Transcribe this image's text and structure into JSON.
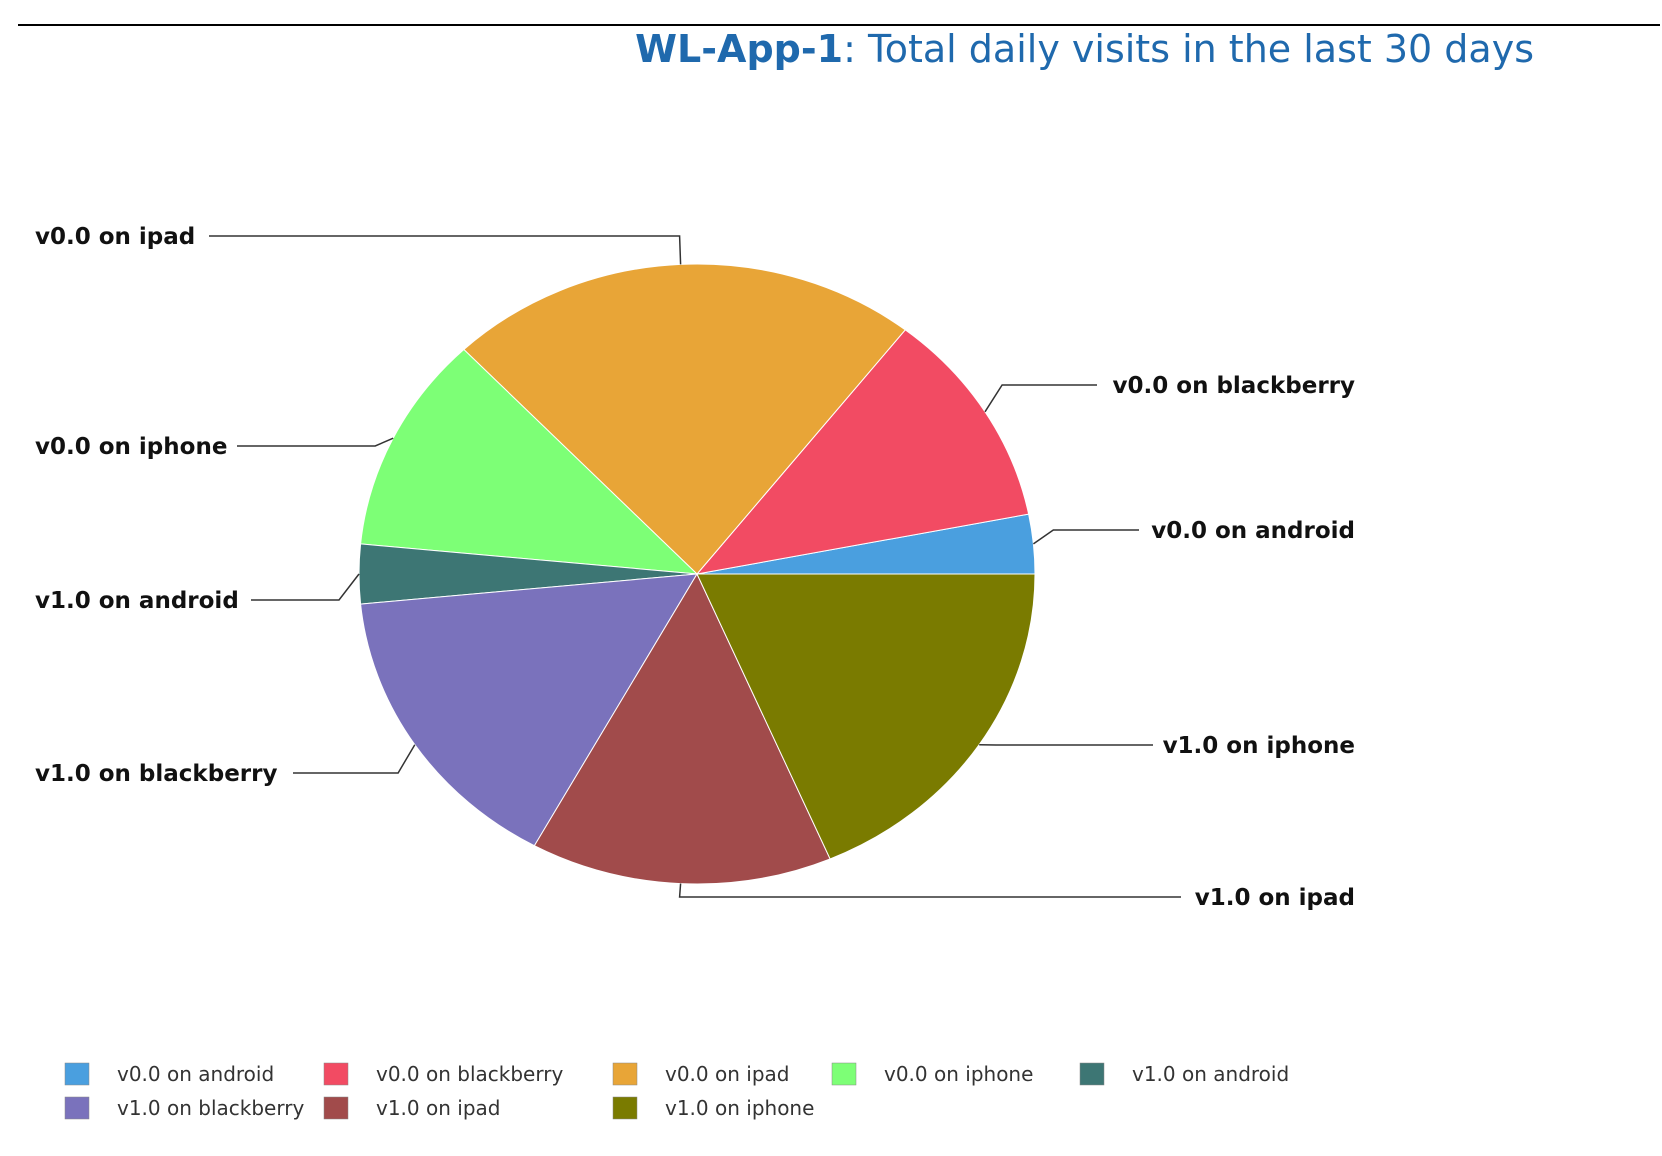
{
  "title": {
    "app": "WL-App-1",
    "sep": ":",
    "text": "Total daily visits in the last 30 days"
  },
  "chart_data": {
    "type": "pie",
    "title": "WL-App-1: Total daily visits in the last 30 days",
    "legend_position": "bottom-left",
    "series": [
      {
        "name": "v0.0 on android",
        "value": 3,
        "color": "#4a9fdf"
      },
      {
        "name": "v0.0 on blackberry",
        "value": 11,
        "color": "#f24b63"
      },
      {
        "name": "v0.0 on ipad",
        "value": 22,
        "color": "#e8a537"
      },
      {
        "name": "v0.0 on iphone",
        "value": 11,
        "color": "#7dff76"
      },
      {
        "name": "v1.0 on android",
        "value": 3,
        "color": "#3d7674"
      },
      {
        "name": "v1.0 on blackberry",
        "value": 15,
        "color": "#7a72bc"
      },
      {
        "name": "v1.0 on ipad",
        "value": 14,
        "color": "#a14b4b"
      },
      {
        "name": "v1.0 on iphone",
        "value": 18,
        "color": "#7a7b00"
      }
    ]
  }
}
